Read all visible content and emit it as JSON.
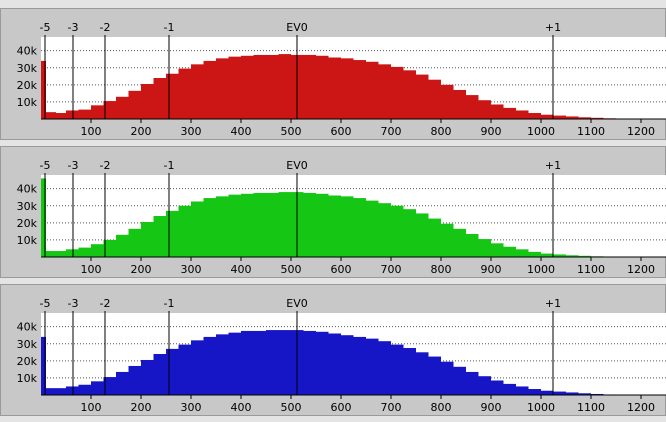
{
  "chart_data": [
    {
      "type": "bar",
      "channel": "red",
      "color": "#cc1616",
      "x_ticks": [
        100,
        200,
        300,
        400,
        500,
        600,
        700,
        800,
        900,
        1000,
        1100,
        1200
      ],
      "y_ticks": [
        "10k",
        "20k",
        "30k",
        "40k"
      ],
      "ev_marks": [
        {
          "label": "-5",
          "x": 8
        },
        {
          "label": "-3",
          "x": 64
        },
        {
          "label": "-2",
          "x": 128
        },
        {
          "label": "-1",
          "x": 256
        },
        {
          "label": "EV0",
          "x": 512
        },
        {
          "label": "+1",
          "x": 1024
        }
      ],
      "xlim": [
        0,
        1250
      ],
      "ylim": [
        0,
        48000
      ],
      "bins": [
        {
          "x": 0,
          "y": 34000
        },
        {
          "x": 10,
          "y": 4000
        },
        {
          "x": 30,
          "y": 3500
        },
        {
          "x": 50,
          "y": 5000
        },
        {
          "x": 75,
          "y": 5500
        },
        {
          "x": 100,
          "y": 8000
        },
        {
          "x": 125,
          "y": 10500
        },
        {
          "x": 150,
          "y": 13000
        },
        {
          "x": 175,
          "y": 16500
        },
        {
          "x": 200,
          "y": 20500
        },
        {
          "x": 225,
          "y": 24000
        },
        {
          "x": 250,
          "y": 26500
        },
        {
          "x": 275,
          "y": 29500
        },
        {
          "x": 300,
          "y": 32000
        },
        {
          "x": 325,
          "y": 34000
        },
        {
          "x": 350,
          "y": 35500
        },
        {
          "x": 375,
          "y": 36500
        },
        {
          "x": 400,
          "y": 37000
        },
        {
          "x": 425,
          "y": 37500
        },
        {
          "x": 450,
          "y": 37500
        },
        {
          "x": 475,
          "y": 38000
        },
        {
          "x": 500,
          "y": 37500
        },
        {
          "x": 525,
          "y": 37500
        },
        {
          "x": 550,
          "y": 37000
        },
        {
          "x": 575,
          "y": 36000
        },
        {
          "x": 600,
          "y": 35500
        },
        {
          "x": 625,
          "y": 34500
        },
        {
          "x": 650,
          "y": 33500
        },
        {
          "x": 675,
          "y": 32000
        },
        {
          "x": 700,
          "y": 30500
        },
        {
          "x": 725,
          "y": 28500
        },
        {
          "x": 750,
          "y": 26000
        },
        {
          "x": 775,
          "y": 23000
        },
        {
          "x": 800,
          "y": 20000
        },
        {
          "x": 825,
          "y": 17000
        },
        {
          "x": 850,
          "y": 14000
        },
        {
          "x": 875,
          "y": 11000
        },
        {
          "x": 900,
          "y": 8500
        },
        {
          "x": 925,
          "y": 6500
        },
        {
          "x": 950,
          "y": 5000
        },
        {
          "x": 975,
          "y": 3500
        },
        {
          "x": 1000,
          "y": 2500
        },
        {
          "x": 1025,
          "y": 2000
        },
        {
          "x": 1050,
          "y": 1500
        },
        {
          "x": 1075,
          "y": 1000
        },
        {
          "x": 1100,
          "y": 700
        },
        {
          "x": 1125,
          "y": 400
        },
        {
          "x": 1150,
          "y": 200
        },
        {
          "x": 1175,
          "y": 100
        },
        {
          "x": 1200,
          "y": 0
        }
      ]
    },
    {
      "type": "bar",
      "channel": "green",
      "color": "#15c615",
      "x_ticks": [
        100,
        200,
        300,
        400,
        500,
        600,
        700,
        800,
        900,
        1000,
        1100,
        1200
      ],
      "y_ticks": [
        "10k",
        "20k",
        "30k",
        "40k"
      ],
      "ev_marks": [
        {
          "label": "-5",
          "x": 8
        },
        {
          "label": "-3",
          "x": 64
        },
        {
          "label": "-2",
          "x": 128
        },
        {
          "label": "-1",
          "x": 256
        },
        {
          "label": "EV0",
          "x": 512
        },
        {
          "label": "+1",
          "x": 1024
        }
      ],
      "xlim": [
        0,
        1250
      ],
      "ylim": [
        0,
        48000
      ],
      "bins": [
        {
          "x": 0,
          "y": 46000
        },
        {
          "x": 10,
          "y": 3500
        },
        {
          "x": 30,
          "y": 3500
        },
        {
          "x": 50,
          "y": 4500
        },
        {
          "x": 75,
          "y": 5500
        },
        {
          "x": 100,
          "y": 7500
        },
        {
          "x": 125,
          "y": 10000
        },
        {
          "x": 150,
          "y": 13000
        },
        {
          "x": 175,
          "y": 16500
        },
        {
          "x": 200,
          "y": 20500
        },
        {
          "x": 225,
          "y": 24000
        },
        {
          "x": 250,
          "y": 27000
        },
        {
          "x": 275,
          "y": 30000
        },
        {
          "x": 300,
          "y": 32500
        },
        {
          "x": 325,
          "y": 34500
        },
        {
          "x": 350,
          "y": 35500
        },
        {
          "x": 375,
          "y": 36500
        },
        {
          "x": 400,
          "y": 37000
        },
        {
          "x": 425,
          "y": 37500
        },
        {
          "x": 450,
          "y": 37500
        },
        {
          "x": 475,
          "y": 38000
        },
        {
          "x": 500,
          "y": 38000
        },
        {
          "x": 525,
          "y": 37500
        },
        {
          "x": 550,
          "y": 37000
        },
        {
          "x": 575,
          "y": 36000
        },
        {
          "x": 600,
          "y": 35500
        },
        {
          "x": 625,
          "y": 34500
        },
        {
          "x": 650,
          "y": 33000
        },
        {
          "x": 675,
          "y": 31500
        },
        {
          "x": 700,
          "y": 30000
        },
        {
          "x": 725,
          "y": 28000
        },
        {
          "x": 750,
          "y": 25500
        },
        {
          "x": 775,
          "y": 22500
        },
        {
          "x": 800,
          "y": 19500
        },
        {
          "x": 825,
          "y": 16500
        },
        {
          "x": 850,
          "y": 13500
        },
        {
          "x": 875,
          "y": 10500
        },
        {
          "x": 900,
          "y": 8000
        },
        {
          "x": 925,
          "y": 6000
        },
        {
          "x": 950,
          "y": 4500
        },
        {
          "x": 975,
          "y": 3000
        },
        {
          "x": 1000,
          "y": 2000
        },
        {
          "x": 1025,
          "y": 1500
        },
        {
          "x": 1050,
          "y": 1000
        },
        {
          "x": 1075,
          "y": 700
        },
        {
          "x": 1100,
          "y": 400
        },
        {
          "x": 1125,
          "y": 200
        },
        {
          "x": 1150,
          "y": 100
        },
        {
          "x": 1175,
          "y": 0
        },
        {
          "x": 1200,
          "y": 0
        }
      ]
    },
    {
      "type": "bar",
      "channel": "blue",
      "color": "#1616c6",
      "x_ticks": [
        100,
        200,
        300,
        400,
        500,
        600,
        700,
        800,
        900,
        1000,
        1100,
        1200
      ],
      "y_ticks": [
        "10k",
        "20k",
        "30k",
        "40k"
      ],
      "ev_marks": [
        {
          "label": "-5",
          "x": 8
        },
        {
          "label": "-3",
          "x": 64
        },
        {
          "label": "-2",
          "x": 128
        },
        {
          "label": "-1",
          "x": 256
        },
        {
          "label": "EV0",
          "x": 512
        },
        {
          "label": "+1",
          "x": 1024
        }
      ],
      "xlim": [
        0,
        1250
      ],
      "ylim": [
        0,
        48000
      ],
      "bins": [
        {
          "x": 0,
          "y": 34000
        },
        {
          "x": 10,
          "y": 4000
        },
        {
          "x": 30,
          "y": 4000
        },
        {
          "x": 50,
          "y": 5000
        },
        {
          "x": 75,
          "y": 6000
        },
        {
          "x": 100,
          "y": 8000
        },
        {
          "x": 125,
          "y": 10500
        },
        {
          "x": 150,
          "y": 13500
        },
        {
          "x": 175,
          "y": 17000
        },
        {
          "x": 200,
          "y": 20500
        },
        {
          "x": 225,
          "y": 24000
        },
        {
          "x": 250,
          "y": 27000
        },
        {
          "x": 275,
          "y": 29500
        },
        {
          "x": 300,
          "y": 32000
        },
        {
          "x": 325,
          "y": 34000
        },
        {
          "x": 350,
          "y": 35500
        },
        {
          "x": 375,
          "y": 36500
        },
        {
          "x": 400,
          "y": 37500
        },
        {
          "x": 425,
          "y": 37500
        },
        {
          "x": 450,
          "y": 38000
        },
        {
          "x": 475,
          "y": 38000
        },
        {
          "x": 500,
          "y": 38000
        },
        {
          "x": 525,
          "y": 37500
        },
        {
          "x": 550,
          "y": 37000
        },
        {
          "x": 575,
          "y": 36000
        },
        {
          "x": 600,
          "y": 35000
        },
        {
          "x": 625,
          "y": 34000
        },
        {
          "x": 650,
          "y": 33000
        },
        {
          "x": 675,
          "y": 31500
        },
        {
          "x": 700,
          "y": 29500
        },
        {
          "x": 725,
          "y": 27500
        },
        {
          "x": 750,
          "y": 25000
        },
        {
          "x": 775,
          "y": 22500
        },
        {
          "x": 800,
          "y": 19500
        },
        {
          "x": 825,
          "y": 16500
        },
        {
          "x": 850,
          "y": 13500
        },
        {
          "x": 875,
          "y": 11000
        },
        {
          "x": 900,
          "y": 8500
        },
        {
          "x": 925,
          "y": 6500
        },
        {
          "x": 950,
          "y": 5000
        },
        {
          "x": 975,
          "y": 3500
        },
        {
          "x": 1000,
          "y": 2500
        },
        {
          "x": 1025,
          "y": 2000
        },
        {
          "x": 1050,
          "y": 1500
        },
        {
          "x": 1075,
          "y": 1000
        },
        {
          "x": 1100,
          "y": 600
        },
        {
          "x": 1125,
          "y": 300
        },
        {
          "x": 1150,
          "y": 100
        },
        {
          "x": 1175,
          "y": 0
        },
        {
          "x": 1200,
          "y": 0
        }
      ]
    }
  ]
}
